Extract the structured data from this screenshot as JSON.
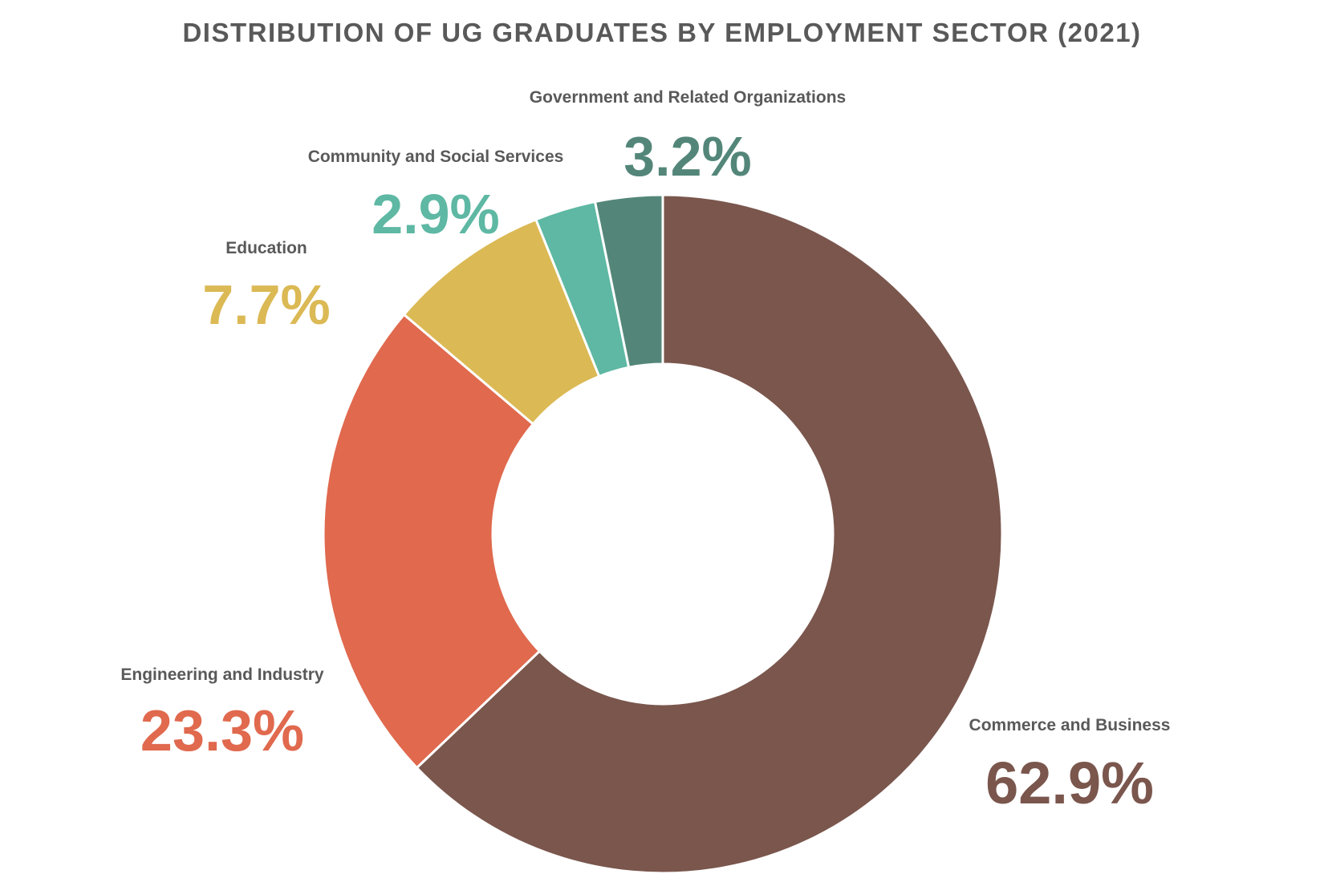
{
  "chart_data": {
    "type": "pie",
    "title": "DISTRIBUTION OF UG GRADUATES BY EMPLOYMENT SECTOR (2021)",
    "categories": [
      "Commerce and Business",
      "Engineering and Industry",
      "Education",
      "Community and Social Services",
      "Government and Related Organizations"
    ],
    "values": [
      62.9,
      23.3,
      7.7,
      2.9,
      3.2
    ],
    "value_labels": [
      "62.9%",
      "23.3%",
      "7.7%",
      "2.9%",
      "3.2%"
    ],
    "colors": [
      "#7a564d",
      "#e0694e",
      "#dbb954",
      "#5eb8a3",
      "#538679"
    ],
    "donut": true,
    "start": "12 o'clock, clockwise"
  }
}
